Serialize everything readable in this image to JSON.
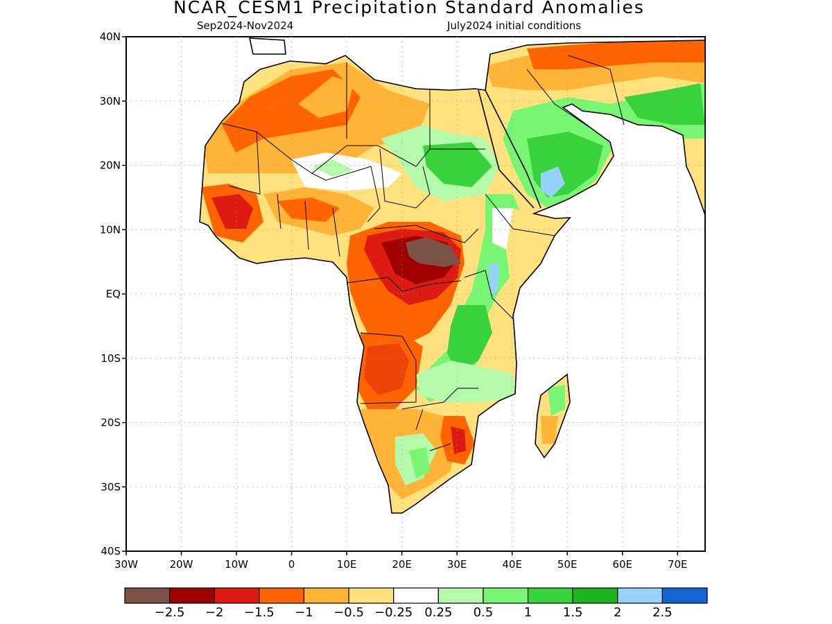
{
  "title": "NCAR_CESM1 Precipitation Standard Anomalies",
  "period": "Sep2024-Nov2024",
  "initial_conditions": "July2024 initial conditions",
  "map": {
    "lon_min": -30,
    "lon_max": 75,
    "lat_min": -40,
    "lat_max": 40,
    "lat_ticks": [
      {
        "value": 40,
        "label": "40N"
      },
      {
        "value": 30,
        "label": "30N"
      },
      {
        "value": 20,
        "label": "20N"
      },
      {
        "value": 10,
        "label": "10N"
      },
      {
        "value": 0,
        "label": "EQ"
      },
      {
        "value": -10,
        "label": "10S"
      },
      {
        "value": -20,
        "label": "20S"
      },
      {
        "value": -30,
        "label": "30S"
      },
      {
        "value": -40,
        "label": "40S"
      }
    ],
    "lon_ticks": [
      {
        "value": -30,
        "label": "30W"
      },
      {
        "value": -20,
        "label": "20W"
      },
      {
        "value": -10,
        "label": "10W"
      },
      {
        "value": 0,
        "label": "0"
      },
      {
        "value": 10,
        "label": "10E"
      },
      {
        "value": 20,
        "label": "20E"
      },
      {
        "value": 30,
        "label": "30E"
      },
      {
        "value": 40,
        "label": "40E"
      },
      {
        "value": 50,
        "label": "50E"
      },
      {
        "value": 60,
        "label": "60E"
      },
      {
        "value": 70,
        "label": "70E"
      }
    ],
    "grid": true
  },
  "colorbar": {
    "colors": [
      "#7a5246",
      "#a00000",
      "#dc1c12",
      "#ff6400",
      "#ffb437",
      "#ffe27d",
      "#ffffff",
      "#b4faaa",
      "#78f573",
      "#37d23c",
      "#1eb41e",
      "#96d2fa",
      "#1464d2"
    ],
    "labels": [
      "-2.5",
      "-2",
      "-1.5",
      "-1",
      "-0.5",
      "-0.25",
      "0.25",
      "0.5",
      "1",
      "1.5",
      "2",
      "2.5"
    ]
  },
  "colors": {
    "anomaly_brown": "#7a5246",
    "anomaly_darkred": "#a00000",
    "anomaly_red": "#dc1c12",
    "anomaly_orange": "#ff6400",
    "anomaly_lightorange": "#ffb437",
    "anomaly_yellow": "#ffe27d",
    "anomaly_lightgreen": "#b4faaa",
    "anomaly_green": "#78f573",
    "anomaly_midgreen": "#37d23c",
    "anomaly_darkgreen": "#1eb41e",
    "anomaly_lightblue": "#96d2fa"
  }
}
